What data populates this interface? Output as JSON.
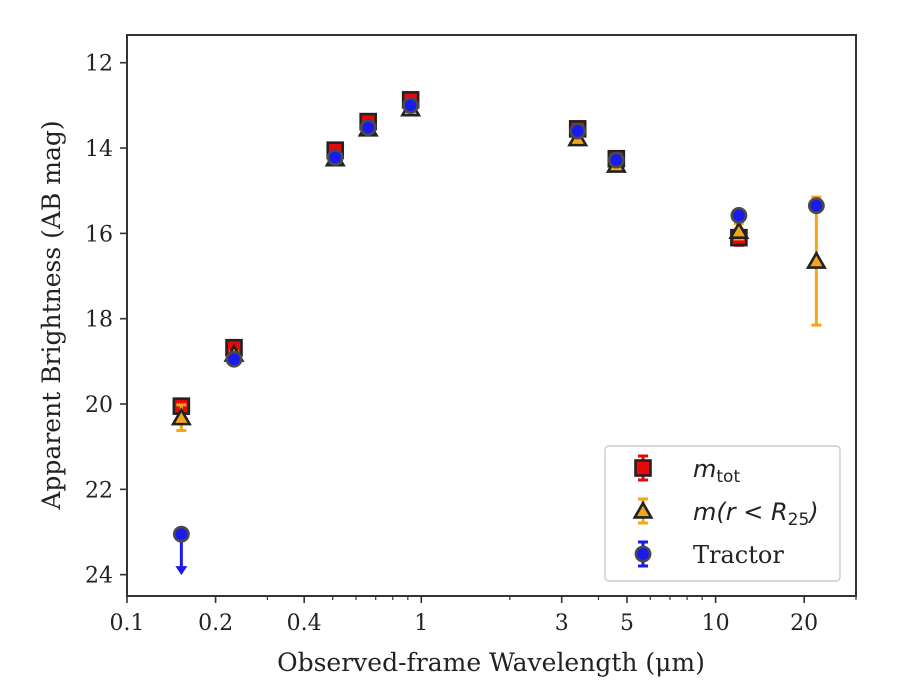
{
  "chart_data": {
    "type": "scatter",
    "xlabel": "Observed-frame Wavelength (μm)",
    "ylabel": "Apparent Brightness (AB mag)",
    "x_scale": "log",
    "xlim": [
      0.1,
      30
    ],
    "ylim": [
      24.5,
      11.35
    ],
    "y_inverted": true,
    "grid": false,
    "legend_position": "lower-right",
    "x_ticks": [
      {
        "value": 0.1,
        "label": "0.1"
      },
      {
        "value": 0.2,
        "label": "0.2"
      },
      {
        "value": 0.4,
        "label": "0.4"
      },
      {
        "value": 1,
        "label": "1"
      },
      {
        "value": 3,
        "label": "3"
      },
      {
        "value": 5,
        "label": "5"
      },
      {
        "value": 10,
        "label": "10"
      },
      {
        "value": 20,
        "label": "20"
      }
    ],
    "y_ticks": [
      {
        "value": 12,
        "label": "12"
      },
      {
        "value": 14,
        "label": "14"
      },
      {
        "value": 16,
        "label": "16"
      },
      {
        "value": 18,
        "label": "18"
      },
      {
        "value": 20,
        "label": "20"
      },
      {
        "value": 22,
        "label": "22"
      },
      {
        "value": 24,
        "label": "24"
      }
    ],
    "series": [
      {
        "name": "m_tot",
        "legend_label": "m",
        "legend_sub": "tot",
        "marker": "square",
        "color": "#e8070a",
        "edge": "#222222",
        "points": [
          {
            "x": 0.153,
            "y": 20.05,
            "err": 0.08
          },
          {
            "x": 0.231,
            "y": 18.68,
            "err": 0.06
          },
          {
            "x": 0.51,
            "y": 14.05,
            "err": 0.05
          },
          {
            "x": 0.66,
            "y": 13.38,
            "err": 0.05
          },
          {
            "x": 0.92,
            "y": 12.87,
            "err": 0.05
          },
          {
            "x": 3.4,
            "y": 13.55,
            "err": 0.05
          },
          {
            "x": 4.6,
            "y": 14.25,
            "err": 0.05
          },
          {
            "x": 12.0,
            "y": 16.1,
            "err": 0.18
          }
        ]
      },
      {
        "name": "m(r<R25)",
        "legend_label": "m(r < R",
        "legend_sub": "25",
        "legend_tail": ")",
        "marker": "triangle",
        "color": "#f4a619",
        "edge": "#222222",
        "points": [
          {
            "x": 0.153,
            "y": 20.32,
            "err": 0.3
          },
          {
            "x": 0.231,
            "y": 18.83,
            "err": 0.06
          },
          {
            "x": 0.51,
            "y": 14.25,
            "err": 0.05
          },
          {
            "x": 0.66,
            "y": 13.55,
            "err": 0.05
          },
          {
            "x": 0.92,
            "y": 13.08,
            "err": 0.05
          },
          {
            "x": 3.4,
            "y": 13.78,
            "err": 0.05
          },
          {
            "x": 4.6,
            "y": 14.4,
            "err": 0.05
          },
          {
            "x": 12.0,
            "y": 15.95,
            "err": 0.18
          },
          {
            "x": 22.0,
            "y": 16.65,
            "err": 1.5
          }
        ]
      },
      {
        "name": "Tractor",
        "legend_label": "Tractor",
        "marker": "circle",
        "color": "#1a1aee",
        "edge": "#4a4a4a",
        "points": [
          {
            "x": 0.153,
            "y": 23.05,
            "err": 0,
            "upper_limit": true
          },
          {
            "x": 0.231,
            "y": 18.95,
            "err": 0.05
          },
          {
            "x": 0.51,
            "y": 14.22,
            "err": 0.05
          },
          {
            "x": 0.66,
            "y": 13.52,
            "err": 0.05
          },
          {
            "x": 0.92,
            "y": 13.0,
            "err": 0.05
          },
          {
            "x": 3.4,
            "y": 13.6,
            "err": 0.05
          },
          {
            "x": 4.6,
            "y": 14.28,
            "err": 0.05
          },
          {
            "x": 12.0,
            "y": 15.58,
            "err": 0.06
          },
          {
            "x": 22.0,
            "y": 15.35,
            "err": 0.1
          }
        ]
      }
    ]
  }
}
